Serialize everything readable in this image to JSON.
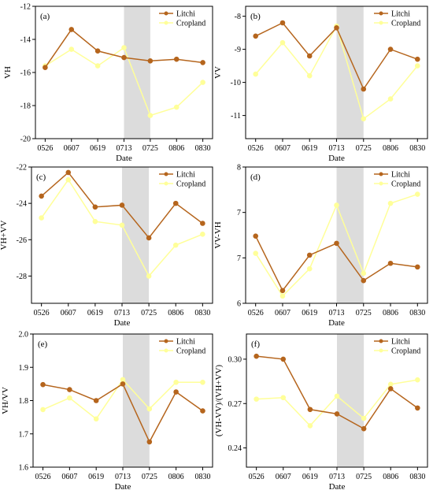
{
  "colors": {
    "litchi": "#b5651d",
    "cropland": "#ffff99",
    "shade": "#dcdcdc",
    "axis": "#000000"
  },
  "chart_data": [
    {
      "panel": "(a)",
      "type": "line",
      "categories": [
        "0526",
        "0607",
        "0619",
        "0713",
        "0725",
        "0806",
        "0830"
      ],
      "xlabel": "Date",
      "ylabel": "VH",
      "ylim": [
        -20,
        -12
      ],
      "yticks": [
        -20,
        -18,
        -16,
        -14,
        -12
      ],
      "shaded_interval": [
        "0713",
        "0725"
      ],
      "legend": "top-right",
      "series": [
        {
          "name": "Litchi",
          "values": [
            -15.7,
            -13.4,
            -14.7,
            -15.1,
            -15.3,
            -15.2,
            -15.4
          ]
        },
        {
          "name": "Cropland",
          "values": [
            -15.6,
            -14.6,
            -15.6,
            -14.5,
            -18.6,
            -18.1,
            -16.6
          ]
        }
      ]
    },
    {
      "panel": "(b)",
      "type": "line",
      "categories": [
        "0526",
        "0607",
        "0619",
        "0713",
        "0725",
        "0806",
        "0830"
      ],
      "xlabel": "Date",
      "ylabel": "VV",
      "ylim": [
        -11.7,
        -7.7
      ],
      "yticks": [
        -11,
        -10,
        -9,
        -8
      ],
      "shaded_interval": [
        "0713",
        "0725"
      ],
      "legend": "top-right",
      "series": [
        {
          "name": "Litchi",
          "values": [
            -8.6,
            -8.2,
            -9.2,
            -8.35,
            -10.2,
            -9.0,
            -9.3
          ]
        },
        {
          "name": "Cropland",
          "values": [
            -9.75,
            -8.8,
            -9.8,
            -8.3,
            -11.1,
            -10.5,
            -9.5
          ]
        }
      ]
    },
    {
      "panel": "(c)",
      "type": "line",
      "categories": [
        "0526",
        "0607",
        "0619",
        "0713",
        "0725",
        "0806",
        "0830"
      ],
      "xlabel": "Date",
      "ylabel": "VH+VV",
      "ylim": [
        -29.5,
        -22
      ],
      "yticks": [
        -28,
        -26,
        -24,
        -22
      ],
      "shaded_interval": [
        "0713",
        "0725"
      ],
      "legend": "top-right",
      "series": [
        {
          "name": "Litchi",
          "values": [
            -23.6,
            -22.3,
            -24.2,
            -24.1,
            -25.9,
            -24.0,
            -25.1
          ]
        },
        {
          "name": "Cropland",
          "values": [
            -24.8,
            -22.7,
            -25.0,
            -25.2,
            -28.0,
            -26.3,
            -25.7
          ]
        }
      ]
    },
    {
      "panel": "(d)",
      "type": "line",
      "categories": [
        "0526",
        "0607",
        "0619",
        "0713",
        "0725",
        "0806",
        "0830"
      ],
      "xlabel": "Date",
      "ylabel": "VV-VH",
      "ylim": [
        6.0,
        7.5
      ],
      "yticks": [
        6.0,
        6.5,
        7.0,
        7.5
      ],
      "shaded_interval": [
        "0713",
        "0725"
      ],
      "legend": "top-right",
      "series": [
        {
          "name": "Litchi",
          "values": [
            6.74,
            6.14,
            6.53,
            6.66,
            6.25,
            6.44,
            6.4
          ]
        },
        {
          "name": "Cropland",
          "values": [
            6.55,
            6.08,
            6.38,
            7.08,
            6.33,
            7.1,
            7.2
          ]
        }
      ]
    },
    {
      "panel": "(e)",
      "type": "line",
      "categories": [
        "0526",
        "0607",
        "0619",
        "0713",
        "0725",
        "0806",
        "0830"
      ],
      "xlabel": "Date",
      "ylabel": "VH/VV",
      "ylim": [
        1.6,
        2.0
      ],
      "yticks": [
        1.6,
        1.7,
        1.8,
        1.9,
        2.0
      ],
      "shaded_interval": [
        "0713",
        "0725"
      ],
      "legend": "top-right",
      "series": [
        {
          "name": "Litchi",
          "values": [
            1.848,
            1.833,
            1.8,
            1.85,
            1.676,
            1.826,
            1.769
          ]
        },
        {
          "name": "Cropland",
          "values": [
            1.773,
            1.808,
            1.745,
            1.863,
            1.775,
            1.855,
            1.855
          ]
        }
      ]
    },
    {
      "panel": "(f)",
      "type": "line",
      "categories": [
        "0526",
        "0607",
        "0619",
        "0713",
        "0725",
        "0806",
        "0830"
      ],
      "xlabel": "Date",
      "ylabel": "(VH-VV)/(VH+VV)",
      "ylim": [
        0.227,
        0.317
      ],
      "yticks": [
        0.24,
        0.27,
        0.3
      ],
      "shaded_interval": [
        "0713",
        "0725"
      ],
      "legend": "top-right",
      "series": [
        {
          "name": "Litchi",
          "values": [
            0.302,
            0.3,
            0.266,
            0.263,
            0.253,
            0.28,
            0.267
          ]
        },
        {
          "name": "Cropland",
          "values": [
            0.273,
            0.274,
            0.255,
            0.275,
            0.26,
            0.283,
            0.286
          ]
        }
      ]
    }
  ]
}
